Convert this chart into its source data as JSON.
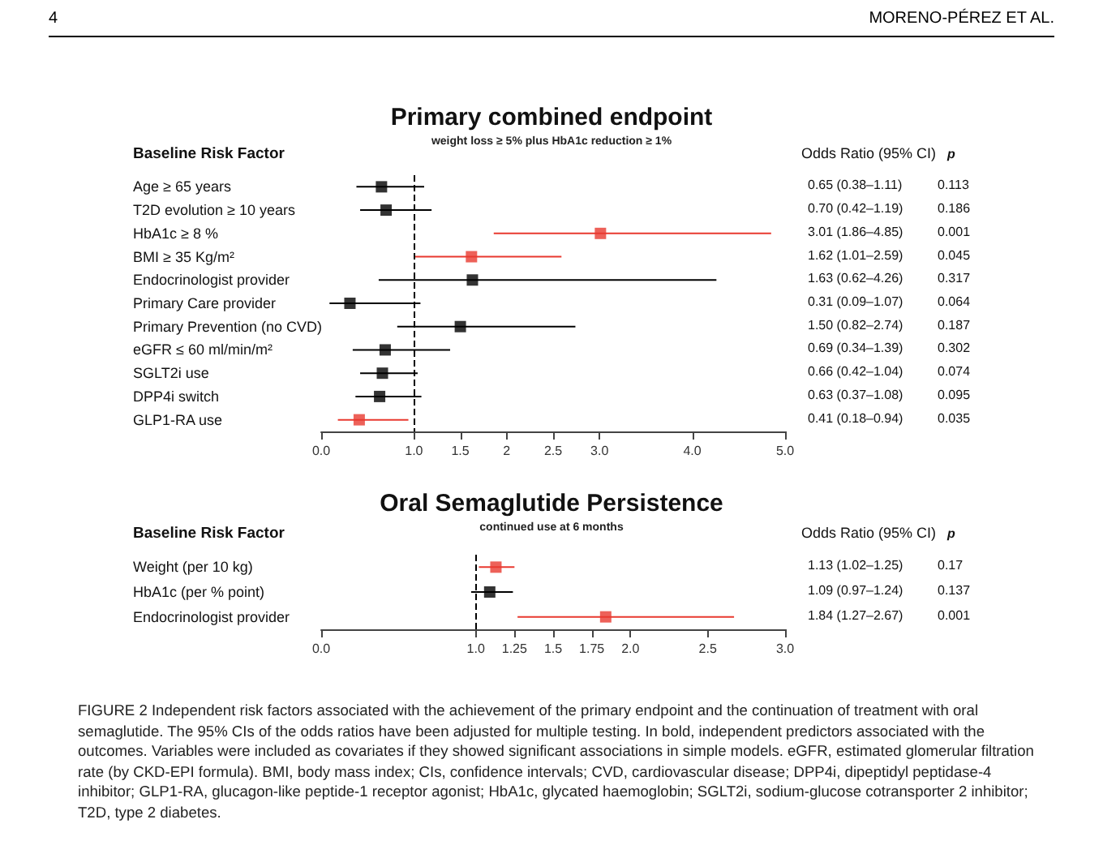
{
  "chart_data": [
    {
      "type": "scatter",
      "title": "Primary combined endpoint",
      "subtitle": "weight loss ≥ 5% plus HbA1c reduction ≥ 1%",
      "ylabel": "Baseline Risk Factor",
      "orientation": "horizontal",
      "marker": "square",
      "grid": false,
      "categories": [
        "Age ≥ 65 years",
        "T2D evolution ≥ 10 years",
        "HbA1c ≥ 8 %",
        "BMI ≥ 35 Kg/m²",
        "Endocrinologist provider",
        "Primary Care provider",
        "Primary Prevention (no CVD)",
        "eGFR ≤ 60 ml/min/m²",
        "SGLT2i use",
        "DPP4i switch",
        "GLP1-RA use"
      ],
      "values": [
        0.65,
        0.7,
        3.01,
        1.62,
        1.63,
        0.31,
        1.5,
        0.69,
        0.66,
        0.63,
        0.41
      ],
      "errors": [
        [
          0.38,
          1.11
        ],
        [
          0.42,
          1.19
        ],
        [
          1.86,
          4.85
        ],
        [
          1.01,
          2.59
        ],
        [
          0.62,
          4.26
        ],
        [
          0.09,
          1.07
        ],
        [
          0.82,
          2.74
        ],
        [
          0.34,
          1.39
        ],
        [
          0.42,
          1.04
        ],
        [
          0.37,
          1.08
        ],
        [
          0.18,
          0.94
        ]
      ],
      "colors": [
        "#000000",
        "#000000",
        "#e8392f",
        "#e8392f",
        "#000000",
        "#000000",
        "#000000",
        "#000000",
        "#000000",
        "#000000",
        "#e8392f"
      ],
      "value_labels": [
        "0.65 (0.38–1.11)",
        "0.70 (0.42–1.19)",
        "3.01 (1.86–4.85)",
        "1.62 (1.01–2.59)",
        "1.63 (0.62–4.26)",
        "0.31 (0.09–1.07)",
        "1.50 (0.82–2.74)",
        "0.69 (0.34–1.39)",
        "0.66 (0.42–1.04)",
        "0.63 (0.37–1.08)",
        "0.41 (0.18–0.94)"
      ],
      "xlim": [
        0,
        5
      ],
      "xticks": [
        {
          "value": 0,
          "label": "0.0"
        },
        {
          "value": 1,
          "label": "1.0"
        },
        1.5,
        2,
        2.5,
        {
          "value": 3,
          "label": "3.0"
        },
        {
          "value": 4,
          "label": "4.0"
        },
        {
          "value": 5,
          "label": "5.0"
        }
      ],
      "ref_lines": [
        {
          "axis": "x",
          "value": 1,
          "label": null,
          "line_style": "dashed"
        }
      ],
      "annotations": [
        "Odds Ratio (95% CI)",
        "p",
        "0.113",
        "0.186",
        "0.001",
        "0.045",
        "0.317",
        "0.064",
        "0.187",
        "0.302",
        "0.074",
        "0.095",
        "0.035",
        "4",
        "MORENO-PÉREZ ET AL."
      ]
    },
    {
      "type": "scatter",
      "title": "Oral Semaglutide Persistence",
      "subtitle": "continued use at 6 months",
      "ylabel": "Baseline Risk Factor",
      "orientation": "horizontal",
      "marker": "square",
      "grid": false,
      "categories": [
        "Weight (per 10 kg)",
        "HbA1c (per % point)",
        "Endocrinologist provider"
      ],
      "values": [
        1.13,
        1.09,
        1.84
      ],
      "errors": [
        [
          1.02,
          1.25
        ],
        [
          0.97,
          1.24
        ],
        [
          1.27,
          2.67
        ]
      ],
      "colors": [
        "#e8392f",
        "#000000",
        "#e8392f"
      ],
      "value_labels": [
        "1.13 (1.02–1.25)",
        "1.09 (0.97–1.24)",
        "1.84 (1.27–2.67)"
      ],
      "xlim": [
        0,
        3
      ],
      "xticks": [
        {
          "value": 0,
          "label": "0.0"
        },
        {
          "value": 1,
          "label": "1.0"
        },
        1.25,
        1.5,
        1.75,
        {
          "value": 2,
          "label": "2.0"
        },
        2.5,
        {
          "value": 3,
          "label": "3.0"
        }
      ],
      "ref_lines": [
        {
          "axis": "x",
          "value": 1,
          "label": null,
          "line_style": "dashed"
        }
      ],
      "annotations": [
        "Odds Ratio (95% CI)",
        "p",
        "0.17",
        "0.137",
        "0.001",
        "FIGURE 2 Independent risk factors associated with the achievement of the primary endpoint and the continuation of treatment with oral semaglutide. The 95% CIs of the odds ratios have been adjusted for multiple testing. In bold, independent predictors associated with the outcomes. Variables were included as covariates if they showed significant associations in simple models. eGFR, estimated glomerular filtration rate (by CKD-EPI formula). BMI, body mass index; CIs, confidence intervals; CVD, cardiovascular disease; DPP4i, dipeptidyl peptidase-4 inhibitor; GLP1-RA, glucagon-like peptide-1 receptor agonist; HbA1c, glycated haemoglobin; SGLT2i, sodium-glucose cotransporter 2 inhibitor; T2D, type 2 diabetes."
      ]
    }
  ]
}
